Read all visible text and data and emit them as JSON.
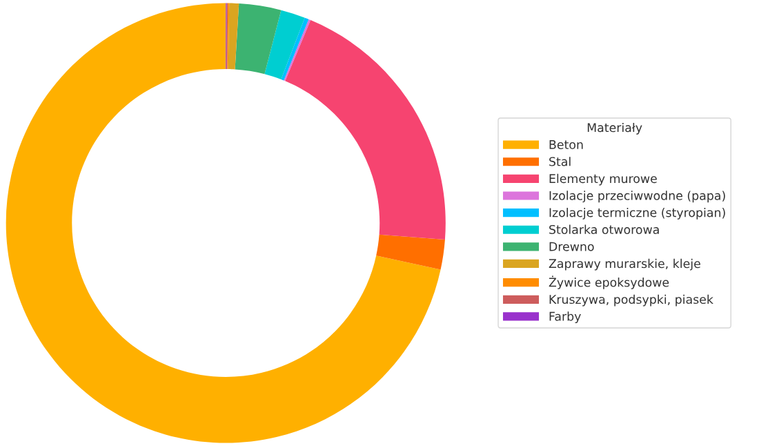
{
  "chart_data": {
    "type": "donut",
    "legend_title": "Materiały",
    "legend": "right",
    "categories": [
      "Beton",
      "Stal",
      "Elementy murowe",
      "Izolacje przeciwwodne (papa)",
      "Izolacje termiczne (styropian)",
      "Stolarka otworowa",
      "Drewno",
      "Zaprawy murarskie, kleje",
      "Żywice epoksydowe",
      "Kruszywa, podsypki, piasek",
      "Farby"
    ],
    "values": [
      71.6,
      2.2,
      19.9,
      0.15,
      0.3,
      1.8,
      3.1,
      0.7,
      0.1,
      0.1,
      0.05
    ],
    "colors": [
      "#ffb000",
      "#ff6f00",
      "#f64470",
      "#dc75dc",
      "#00bfff",
      "#00ced1",
      "#3cb371",
      "#daa520",
      "#ff8c00",
      "#cd5c5c",
      "#9932cc"
    ]
  }
}
